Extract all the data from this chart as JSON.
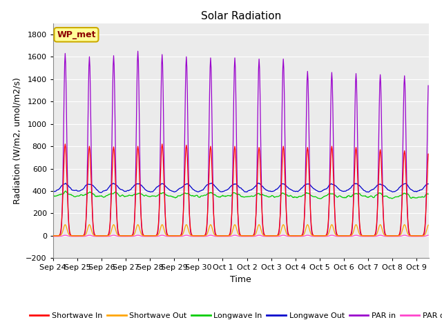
{
  "title": "Solar Radiation",
  "xlabel": "Time",
  "ylabel": "Radiation (W/m2, umol/m2/s)",
  "ylim": [
    -200,
    1900
  ],
  "yticks": [
    -200,
    0,
    200,
    400,
    600,
    800,
    1000,
    1200,
    1400,
    1600,
    1800
  ],
  "annotation": "WP_met",
  "plot_bg_color": "#ebebeb",
  "fig_bg_color": "#ffffff",
  "colors": {
    "shortwave_in": "#ff0000",
    "shortwave_out": "#ffa500",
    "longwave_in": "#00cc00",
    "longwave_out": "#0000cc",
    "par_in": "#9900cc",
    "par_out": "#ff44cc"
  },
  "legend_labels": [
    "Shortwave In",
    "Shortwave Out",
    "Longwave In",
    "Longwave Out",
    "PAR in",
    "PAR out"
  ],
  "x_tick_labels": [
    "Sep 24",
    "Sep 25",
    "Sep 26",
    "Sep 27",
    "Sep 28",
    "Sep 29",
    "Sep 30",
    "Oct 1",
    "Oct 2",
    "Oct 3",
    "Oct 4",
    "Oct 5",
    "Oct 6",
    "Oct 7",
    "Oct 8",
    "Oct 9"
  ],
  "num_days": 15.5,
  "n_ticks": 16
}
